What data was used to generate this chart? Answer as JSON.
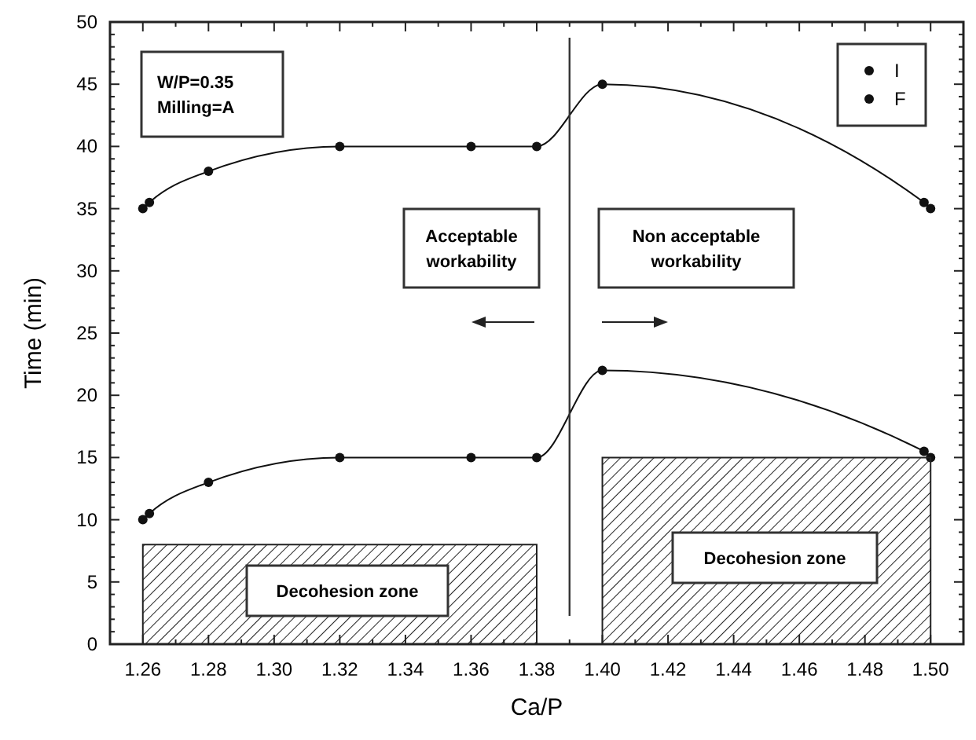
{
  "chart_data": {
    "type": "line",
    "xlabel": "Ca/P",
    "ylabel": "Time (min)",
    "xlim": [
      1.25,
      1.51
    ],
    "xticks": [
      1.26,
      1.28,
      {
        "value": 1.3,
        "label": "1.30"
      },
      1.32,
      1.34,
      1.36,
      1.38,
      {
        "value": 1.4,
        "label": "1.40"
      },
      1.42,
      1.44,
      1.46,
      1.48,
      {
        "value": 1.5,
        "label": "1.50"
      }
    ],
    "ylim": [
      0,
      50
    ],
    "yticks": [
      0,
      5,
      10,
      15,
      20,
      25,
      30,
      35,
      40,
      45,
      50
    ],
    "grid": false,
    "legend": "top right",
    "marker": "circle",
    "line_style": "solid",
    "series": [
      {
        "name": "I",
        "color": "#111111",
        "x": [
          1.26,
          1.262,
          1.28,
          1.32,
          1.36,
          1.38,
          1.4,
          1.498,
          1.5
        ],
        "values": [
          10,
          10.5,
          13,
          15,
          15,
          15,
          22,
          15.5,
          15
        ]
      },
      {
        "name": "F",
        "color": "#111111",
        "x": [
          1.26,
          1.262,
          1.28,
          1.32,
          1.36,
          1.38,
          1.4,
          1.498,
          1.5
        ],
        "values": [
          35,
          35.5,
          38,
          40,
          40,
          40,
          45,
          35.5,
          35
        ]
      },
      {
        "type": "area",
        "color": "#222222",
        "marker": "none",
        "x": [
          1.26,
          1.38
        ],
        "values": [
          8,
          8
        ]
      },
      {
        "type": "area",
        "color": "#222222",
        "marker": "none",
        "x": [
          1.4,
          1.5
        ],
        "values": [
          15,
          15
        ]
      }
    ],
    "ref_lines": [
      {
        "axis": "x",
        "value": 1.39,
        "color": "#333333"
      }
    ],
    "annotations": [
      "W/P=0.35\nMilling=A",
      "Acceptable\nworkability",
      "Non acceptable\nworkability",
      "Decohesion zone",
      "Decohesion zone"
    ]
  }
}
